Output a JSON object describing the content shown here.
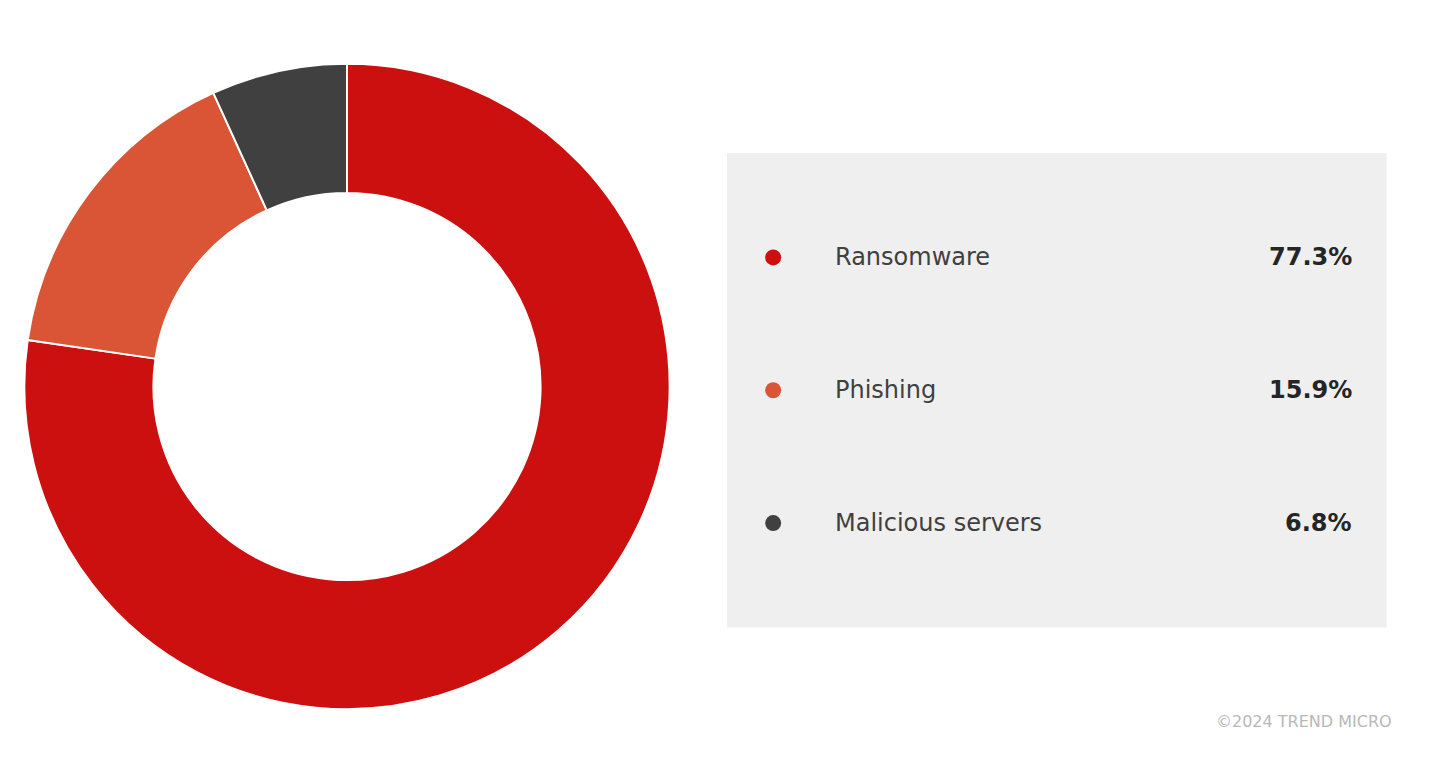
{
  "chart_data": {
    "type": "pie",
    "categories": [
      "Ransomware",
      "Phishing",
      "Malicious servers"
    ],
    "values": [
      77.3,
      15.9,
      6.8
    ],
    "value_labels": [
      "77.3%",
      "15.9%",
      "6.8%"
    ],
    "colors": [
      "#cc1010",
      "#d95535",
      "#404040"
    ],
    "legend": "right",
    "annotations": [
      "©2024 TREND MICRO"
    ]
  }
}
